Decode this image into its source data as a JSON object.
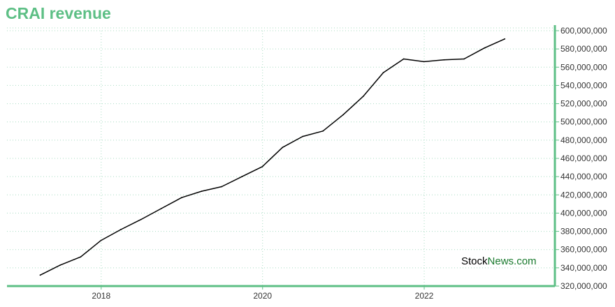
{
  "chart_data": {
    "type": "line",
    "title": "CRAI revenue",
    "xlabel": "",
    "ylabel": "",
    "x_ticks": [
      "2018",
      "2020",
      "2022"
    ],
    "y_ticks": [
      "320,000,000",
      "340,000,000",
      "360,000,000",
      "380,000,000",
      "400,000,000",
      "420,000,000",
      "440,000,000",
      "460,000,000",
      "480,000,000",
      "500,000,000",
      "520,000,000",
      "540,000,000",
      "560,000,000",
      "580,000,000",
      "600,000,000"
    ],
    "ylim": [
      320000000,
      600000000
    ],
    "xlim": [
      "2016-11-01",
      "2023-08-15"
    ],
    "y_axis_position": "right",
    "grid": true,
    "series": [
      {
        "color": "#000000",
        "points": [
          {
            "x": "2017-03-31",
            "y": 332000000
          },
          {
            "x": "2017-06-30",
            "y": 343000000
          },
          {
            "x": "2017-09-30",
            "y": 352000000
          },
          {
            "x": "2017-12-31",
            "y": 370000000
          },
          {
            "x": "2018-03-31",
            "y": 382000000
          },
          {
            "x": "2018-06-30",
            "y": 393000000
          },
          {
            "x": "2018-09-30",
            "y": 405000000
          },
          {
            "x": "2018-12-31",
            "y": 417000000
          },
          {
            "x": "2019-03-31",
            "y": 424000000
          },
          {
            "x": "2019-06-30",
            "y": 429000000
          },
          {
            "x": "2019-09-30",
            "y": 440000000
          },
          {
            "x": "2019-12-31",
            "y": 451000000
          },
          {
            "x": "2020-03-31",
            "y": 472000000
          },
          {
            "x": "2020-06-30",
            "y": 484000000
          },
          {
            "x": "2020-09-30",
            "y": 490000000
          },
          {
            "x": "2020-12-31",
            "y": 508000000
          },
          {
            "x": "2021-03-31",
            "y": 528000000
          },
          {
            "x": "2021-06-30",
            "y": 554000000
          },
          {
            "x": "2021-09-30",
            "y": 569000000
          },
          {
            "x": "2021-12-31",
            "y": 566000000
          },
          {
            "x": "2022-03-31",
            "y": 568000000
          },
          {
            "x": "2022-06-30",
            "y": 569000000
          },
          {
            "x": "2022-09-30",
            "y": 581000000
          },
          {
            "x": "2022-12-31",
            "y": 591000000
          }
        ]
      }
    ]
  },
  "watermark": {
    "part1": "Stock",
    "part2": "News",
    "part3": ".com",
    "color_dark": "#000000",
    "color_brand": "#1a7a2e"
  },
  "colors": {
    "axis": "#5dbf85",
    "grid": "#a8dcc2",
    "line": "#000000",
    "title": "#5dbf85"
  }
}
